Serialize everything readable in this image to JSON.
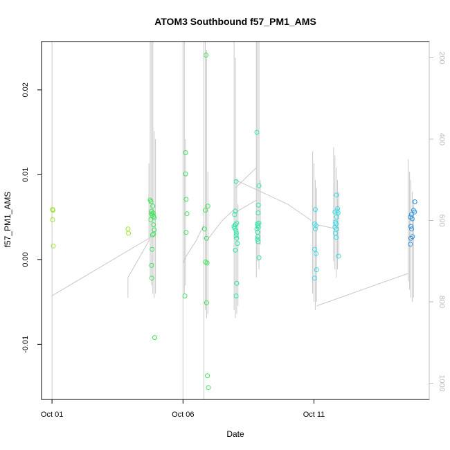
{
  "chart_data": {
    "type": "scatter",
    "title": "ATOM3 Southbound f57_PM1_AMS",
    "xlabel": "Date",
    "ylabel": "f57_PM1_AMS",
    "x_ticks": [
      "Oct 01",
      "Oct 06",
      "Oct 11"
    ],
    "x_tick_days": [
      1,
      6,
      11
    ],
    "xlim": [
      0.6,
      15.4
    ],
    "ylim": [
      -0.0165,
      0.0257
    ],
    "y_ticks": [
      -0.01,
      0.0,
      0.01,
      0.02
    ],
    "y_tick_labels": [
      "-0.01",
      "0.00",
      "0.01",
      "0.02"
    ],
    "right_axis": {
      "ticks": [
        200,
        400,
        600,
        800,
        1000
      ],
      "tick_labels": [
        "200",
        "400",
        "600",
        "800",
        "1000"
      ],
      "reversed": true,
      "range": [
        160,
        1040
      ],
      "color": "#bdbdbd"
    },
    "grid": false,
    "legend": "none",
    "point_colors": {
      "early": "#9be52b",
      "mid": "#3ee35a",
      "late_mid": "#2de6a8",
      "cyan": "#3adbe6",
      "blue": "#2b8fe0"
    },
    "profile_line_color": "#c8c8c8",
    "points": [
      {
        "day": 1.02,
        "v": 0.0059,
        "c": "early"
      },
      {
        "day": 1.04,
        "v": 0.0058,
        "c": "early"
      },
      {
        "day": 1.02,
        "v": 0.0047,
        "c": "early"
      },
      {
        "day": 1.05,
        "v": 0.0016,
        "c": "early"
      },
      {
        "day": 3.9,
        "v": 0.0036,
        "c": "early"
      },
      {
        "day": 3.92,
        "v": 0.0031,
        "c": "early"
      },
      {
        "day": 4.75,
        "v": 0.007,
        "c": "mid"
      },
      {
        "day": 4.78,
        "v": 0.0068,
        "c": "mid"
      },
      {
        "day": 4.8,
        "v": 0.0057,
        "c": "mid"
      },
      {
        "day": 4.8,
        "v": 0.0054,
        "c": "mid"
      },
      {
        "day": 4.77,
        "v": 0.0047,
        "c": "mid"
      },
      {
        "day": 4.82,
        "v": 0.0052,
        "c": "mid"
      },
      {
        "day": 4.85,
        "v": 0.0063,
        "c": "mid"
      },
      {
        "day": 4.86,
        "v": 0.0055,
        "c": "mid"
      },
      {
        "day": 4.88,
        "v": 0.0051,
        "c": "mid"
      },
      {
        "day": 4.9,
        "v": 0.0049,
        "c": "mid"
      },
      {
        "day": 4.87,
        "v": 0.0041,
        "c": "mid"
      },
      {
        "day": 4.9,
        "v": 0.0035,
        "c": "mid"
      },
      {
        "day": 4.88,
        "v": 0.003,
        "c": "mid"
      },
      {
        "day": 4.84,
        "v": 0.0029,
        "c": "mid"
      },
      {
        "day": 4.82,
        "v": 0.0012,
        "c": "mid"
      },
      {
        "day": 4.8,
        "v": -0.0007,
        "c": "mid"
      },
      {
        "day": 4.81,
        "v": -0.0022,
        "c": "mid"
      },
      {
        "day": 4.92,
        "v": -0.0092,
        "c": "mid"
      },
      {
        "day": 6.1,
        "v": 0.0126,
        "c": "mid"
      },
      {
        "day": 6.1,
        "v": 0.0101,
        "c": "mid"
      },
      {
        "day": 6.12,
        "v": 0.0071,
        "c": "mid"
      },
      {
        "day": 6.15,
        "v": 0.0054,
        "c": "mid"
      },
      {
        "day": 6.12,
        "v": 0.0032,
        "c": "mid"
      },
      {
        "day": 6.07,
        "v": -0.0043,
        "c": "mid"
      },
      {
        "day": 6.88,
        "v": 0.0241,
        "c": "mid"
      },
      {
        "day": 6.85,
        "v": 0.0058,
        "c": "mid"
      },
      {
        "day": 6.95,
        "v": 0.0063,
        "c": "mid"
      },
      {
        "day": 6.82,
        "v": 0.0036,
        "c": "mid"
      },
      {
        "day": 6.9,
        "v": 0.0025,
        "c": "mid"
      },
      {
        "day": 6.86,
        "v": -0.0003,
        "c": "mid"
      },
      {
        "day": 6.92,
        "v": -0.0004,
        "c": "mid"
      },
      {
        "day": 6.9,
        "v": -0.0051,
        "c": "mid"
      },
      {
        "day": 6.93,
        "v": -0.0137,
        "c": "mid"
      },
      {
        "day": 6.97,
        "v": -0.0151,
        "c": "mid"
      },
      {
        "day": 8.03,
        "v": 0.0092,
        "c": "late_mid"
      },
      {
        "day": 8.0,
        "v": 0.0057,
        "c": "late_mid"
      },
      {
        "day": 7.97,
        "v": 0.0053,
        "c": "late_mid"
      },
      {
        "day": 7.95,
        "v": 0.0039,
        "c": "late_mid"
      },
      {
        "day": 8.0,
        "v": 0.0041,
        "c": "late_mid"
      },
      {
        "day": 8.05,
        "v": 0.0043,
        "c": "late_mid"
      },
      {
        "day": 7.98,
        "v": 0.0037,
        "c": "late_mid"
      },
      {
        "day": 8.02,
        "v": 0.0034,
        "c": "late_mid"
      },
      {
        "day": 8.04,
        "v": 0.0031,
        "c": "late_mid"
      },
      {
        "day": 8.03,
        "v": 0.0028,
        "c": "late_mid"
      },
      {
        "day": 8.05,
        "v": 0.0025,
        "c": "late_mid"
      },
      {
        "day": 8.08,
        "v": 0.0019,
        "c": "late_mid"
      },
      {
        "day": 8.0,
        "v": 0.0011,
        "c": "late_mid"
      },
      {
        "day": 8.05,
        "v": -0.0028,
        "c": "late_mid"
      },
      {
        "day": 8.03,
        "v": -0.0043,
        "c": "late_mid"
      },
      {
        "day": 8.82,
        "v": 0.015,
        "c": "late_mid"
      },
      {
        "day": 8.9,
        "v": 0.0087,
        "c": "late_mid"
      },
      {
        "day": 8.88,
        "v": 0.0064,
        "c": "late_mid"
      },
      {
        "day": 8.87,
        "v": 0.0055,
        "c": "late_mid"
      },
      {
        "day": 8.84,
        "v": 0.0042,
        "c": "late_mid"
      },
      {
        "day": 8.9,
        "v": 0.0043,
        "c": "late_mid"
      },
      {
        "day": 8.86,
        "v": 0.004,
        "c": "late_mid"
      },
      {
        "day": 8.82,
        "v": 0.0036,
        "c": "late_mid"
      },
      {
        "day": 8.88,
        "v": 0.0038,
        "c": "late_mid"
      },
      {
        "day": 8.85,
        "v": 0.0032,
        "c": "late_mid"
      },
      {
        "day": 8.86,
        "v": 0.0027,
        "c": "late_mid"
      },
      {
        "day": 8.84,
        "v": 0.0024,
        "c": "late_mid"
      },
      {
        "day": 8.87,
        "v": 0.0021,
        "c": "late_mid"
      },
      {
        "day": 8.9,
        "v": 0.0002,
        "c": "late_mid"
      },
      {
        "day": 11.05,
        "v": 0.0059,
        "c": "cyan"
      },
      {
        "day": 11.02,
        "v": 0.0042,
        "c": "cyan"
      },
      {
        "day": 11.08,
        "v": 0.004,
        "c": "cyan"
      },
      {
        "day": 11.05,
        "v": 0.0036,
        "c": "cyan"
      },
      {
        "day": 11.03,
        "v": 0.0012,
        "c": "cyan"
      },
      {
        "day": 11.08,
        "v": 0.0007,
        "c": "cyan"
      },
      {
        "day": 11.1,
        "v": -0.0012,
        "c": "cyan"
      },
      {
        "day": 11.02,
        "v": -0.0022,
        "c": "cyan"
      },
      {
        "day": 11.85,
        "v": 0.0076,
        "c": "cyan"
      },
      {
        "day": 11.9,
        "v": 0.006,
        "c": "cyan"
      },
      {
        "day": 11.88,
        "v": 0.0057,
        "c": "cyan"
      },
      {
        "day": 11.92,
        "v": 0.0055,
        "c": "cyan"
      },
      {
        "day": 11.8,
        "v": 0.0056,
        "c": "cyan"
      },
      {
        "day": 11.86,
        "v": 0.005,
        "c": "cyan"
      },
      {
        "day": 11.82,
        "v": 0.0044,
        "c": "cyan"
      },
      {
        "day": 11.84,
        "v": 0.0042,
        "c": "cyan"
      },
      {
        "day": 11.8,
        "v": 0.0038,
        "c": "cyan"
      },
      {
        "day": 11.86,
        "v": 0.0036,
        "c": "cyan"
      },
      {
        "day": 11.82,
        "v": 0.0031,
        "c": "cyan"
      },
      {
        "day": 11.84,
        "v": 0.0026,
        "c": "cyan"
      },
      {
        "day": 11.94,
        "v": 0.0004,
        "c": "cyan"
      },
      {
        "day": 14.85,
        "v": 0.0068,
        "c": "blue"
      },
      {
        "day": 14.8,
        "v": 0.0058,
        "c": "blue"
      },
      {
        "day": 14.84,
        "v": 0.0056,
        "c": "blue"
      },
      {
        "day": 14.72,
        "v": 0.0053,
        "c": "blue"
      },
      {
        "day": 14.68,
        "v": 0.005,
        "c": "blue"
      },
      {
        "day": 14.75,
        "v": 0.0048,
        "c": "blue"
      },
      {
        "day": 14.7,
        "v": 0.0039,
        "c": "blue"
      },
      {
        "day": 14.73,
        "v": 0.0036,
        "c": "blue"
      },
      {
        "day": 14.76,
        "v": 0.0027,
        "c": "blue"
      },
      {
        "day": 14.7,
        "v": 0.0025,
        "c": "blue"
      },
      {
        "day": 14.68,
        "v": 0.0018,
        "c": "blue"
      }
    ],
    "profile_segments": [
      [
        [
          1.0,
          160
        ],
        [
          1.0,
          1040
        ]
      ],
      [
        [
          1.0,
          785
        ],
        [
          4.8,
          640
        ]
      ],
      [
        [
          3.9,
          790
        ],
        [
          3.9,
          740
        ],
        [
          4.7,
          650
        ],
        [
          4.7,
          460
        ]
      ],
      [
        [
          6.0,
          160
        ],
        [
          6.0,
          1040
        ]
      ],
      [
        [
          6.0,
          705
        ],
        [
          6.1,
          690
        ],
        [
          6.5,
          650
        ],
        [
          6.8,
          610
        ]
      ],
      [
        [
          6.8,
          160
        ],
        [
          6.8,
          1040
        ]
      ],
      [
        [
          6.9,
          650
        ],
        [
          7.5,
          600
        ],
        [
          8.0,
          570
        ]
      ],
      [
        [
          8.0,
          580
        ],
        [
          8.8,
          550
        ]
      ],
      [
        [
          8.0,
          520
        ],
        [
          8.8,
          470
        ]
      ],
      [
        [
          8.0,
          500
        ],
        [
          10.0,
          560
        ],
        [
          10.9,
          600
        ]
      ],
      [
        [
          11.1,
          810
        ],
        [
          14.6,
          730
        ]
      ],
      [
        [
          11.1,
          610
        ],
        [
          11.8,
          620
        ]
      ]
    ],
    "profile_spikes": [
      {
        "day": 4.75,
        "top": 160,
        "bottom": 740
      },
      {
        "day": 4.8,
        "top": 160,
        "bottom": 760
      },
      {
        "day": 4.85,
        "top": 160,
        "bottom": 780
      },
      {
        "day": 4.9,
        "top": 380,
        "bottom": 790
      },
      {
        "day": 4.95,
        "top": 400,
        "bottom": 780
      },
      {
        "day": 6.05,
        "top": 160,
        "bottom": 780
      },
      {
        "day": 6.1,
        "top": 400,
        "bottom": 760
      },
      {
        "day": 6.85,
        "top": 160,
        "bottom": 820
      },
      {
        "day": 6.9,
        "top": 180,
        "bottom": 840
      },
      {
        "day": 6.95,
        "top": 480,
        "bottom": 830
      },
      {
        "day": 7.95,
        "top": 160,
        "bottom": 820
      },
      {
        "day": 8.0,
        "top": 200,
        "bottom": 840
      },
      {
        "day": 8.05,
        "top": 500,
        "bottom": 830
      },
      {
        "day": 8.1,
        "top": 560,
        "bottom": 810
      },
      {
        "day": 8.8,
        "top": 160,
        "bottom": 740
      },
      {
        "day": 8.85,
        "top": 160,
        "bottom": 700
      },
      {
        "day": 8.9,
        "top": 160,
        "bottom": 720
      },
      {
        "day": 8.95,
        "top": 500,
        "bottom": 660
      },
      {
        "day": 10.95,
        "top": 430,
        "bottom": 780
      },
      {
        "day": 11.0,
        "top": 460,
        "bottom": 800
      },
      {
        "day": 11.05,
        "top": 500,
        "bottom": 820
      },
      {
        "day": 11.1,
        "top": 520,
        "bottom": 800
      },
      {
        "day": 11.75,
        "top": 420,
        "bottom": 700
      },
      {
        "day": 11.8,
        "top": 440,
        "bottom": 720
      },
      {
        "day": 11.85,
        "top": 470,
        "bottom": 740
      },
      {
        "day": 11.9,
        "top": 500,
        "bottom": 720
      },
      {
        "day": 11.95,
        "top": 530,
        "bottom": 690
      },
      {
        "day": 14.6,
        "top": 450,
        "bottom": 750
      },
      {
        "day": 14.65,
        "top": 480,
        "bottom": 770
      },
      {
        "day": 14.7,
        "top": 500,
        "bottom": 790
      },
      {
        "day": 14.75,
        "top": 530,
        "bottom": 800
      },
      {
        "day": 14.8,
        "top": 550,
        "bottom": 790
      }
    ]
  }
}
